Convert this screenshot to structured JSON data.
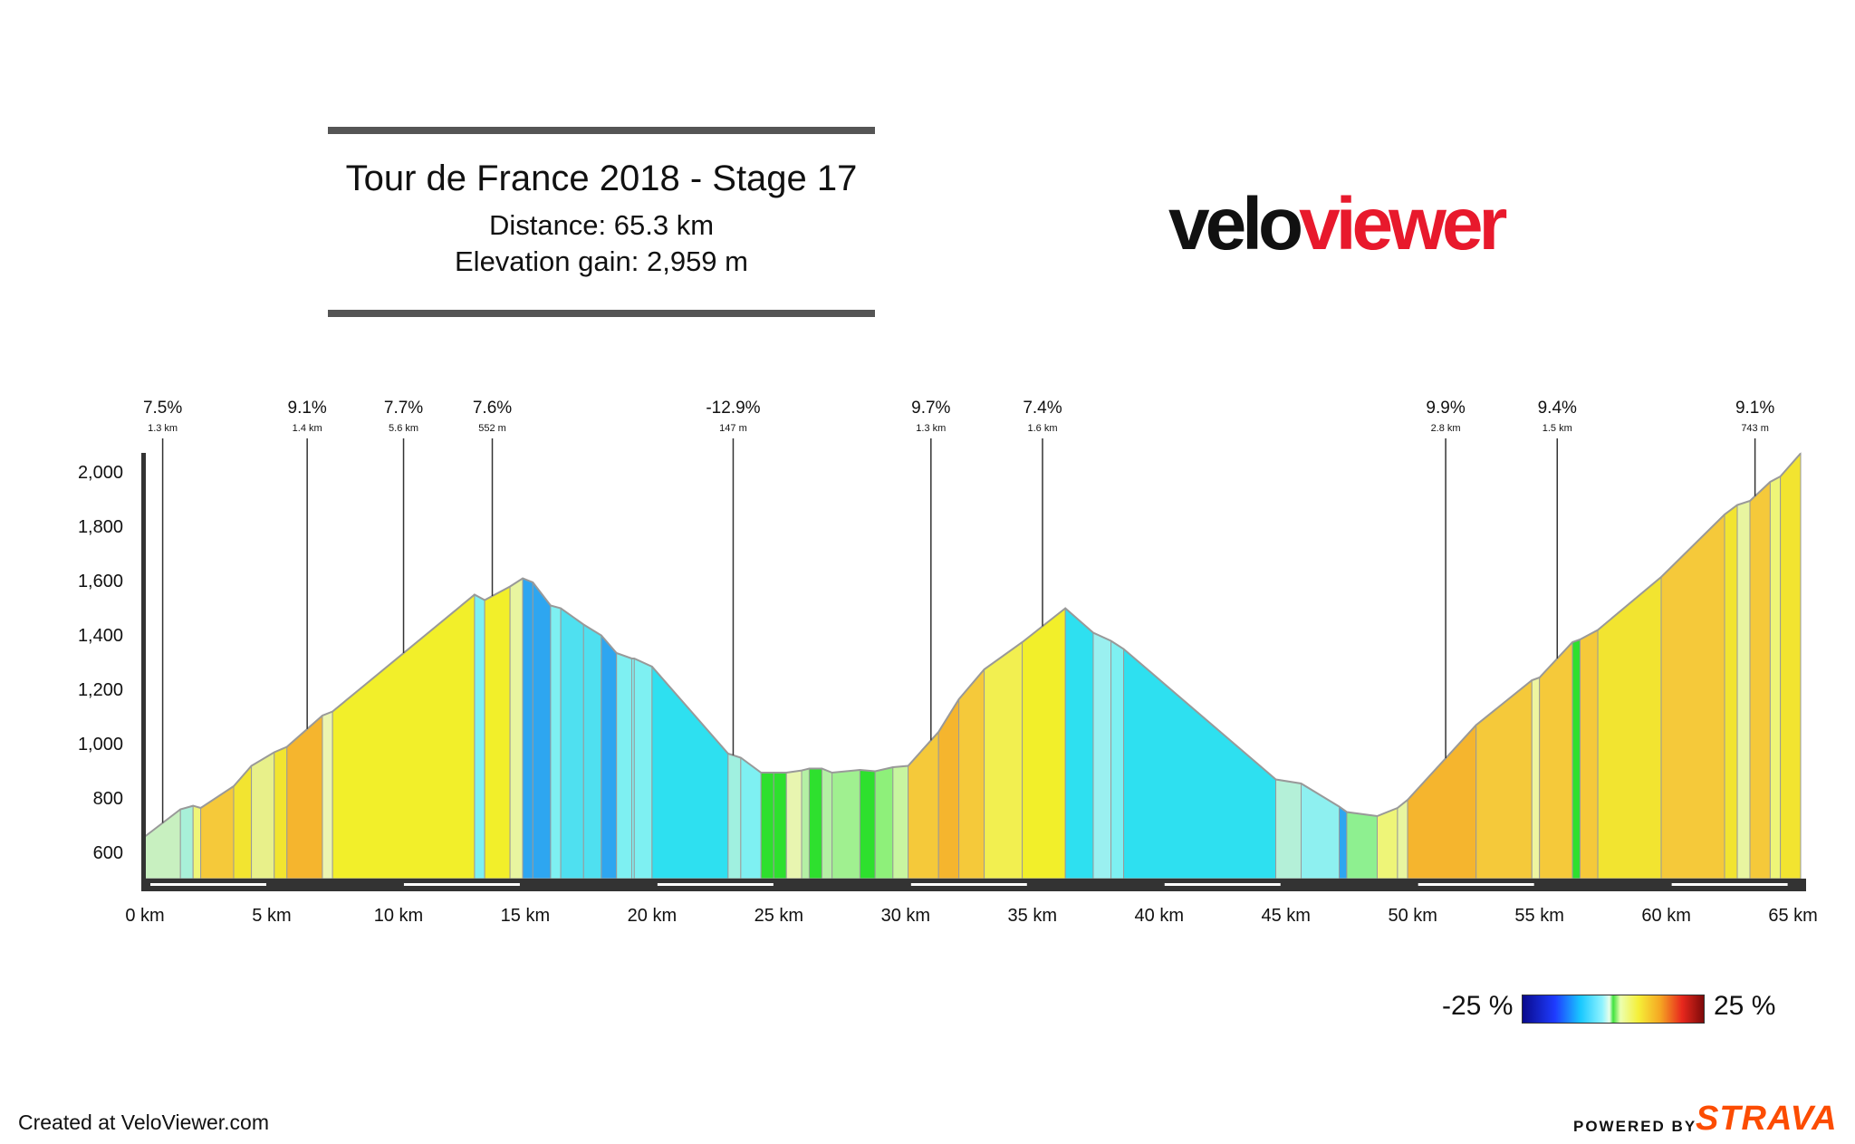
{
  "title": "Tour de France 2018 - Stage 17",
  "distance_text": "Distance: 65.3 km",
  "elevation_text": "Elevation gain: 2,959 m",
  "logo": {
    "part1": "velo",
    "part2": "viewer",
    "color1": "#111111",
    "color2": "#e8192c"
  },
  "footer": {
    "created": "Created at VeloViewer.com",
    "powered": "POWERED BY",
    "strava": "STRAVA"
  },
  "legend": {
    "min": "-25 %",
    "max": "25 %"
  },
  "chart_data": {
    "type": "area",
    "x_unit": "km",
    "y_unit": "m",
    "xlim": [
      0,
      65.3
    ],
    "ylim": [
      500,
      2070
    ],
    "x_ticks": [
      0,
      5,
      10,
      15,
      20,
      25,
      30,
      35,
      40,
      45,
      50,
      55,
      60,
      65
    ],
    "x_tick_labels": [
      "0 km",
      "5 km",
      "10 km",
      "15 km",
      "20 km",
      "25 km",
      "30 km",
      "35 km",
      "40 km",
      "45 km",
      "50 km",
      "55 km",
      "60 km",
      "65 km"
    ],
    "y_ticks": [
      600,
      800,
      1000,
      1200,
      1400,
      1600,
      1800,
      2000
    ],
    "y_tick_labels": [
      "600",
      "800",
      "1,000",
      "1,200",
      "1,400",
      "1,600",
      "1,800",
      "2,000"
    ],
    "profile": [
      [
        0,
        655,
        "#f2e430"
      ],
      [
        1.4,
        755,
        "#c8f0c0"
      ],
      [
        1.9,
        768,
        "#a8f0d8"
      ],
      [
        2.2,
        760,
        "#eef578"
      ],
      [
        3.5,
        840,
        "#f5c93a"
      ],
      [
        4.2,
        915,
        "#f2e430"
      ],
      [
        5.1,
        965,
        "#e8f08a"
      ],
      [
        5.6,
        985,
        "#f2e430"
      ],
      [
        7.0,
        1100,
        "#f5b52e"
      ],
      [
        7.4,
        1115,
        "#ecf5b0"
      ],
      [
        13.0,
        1545,
        "#f2ef2a"
      ],
      [
        13.4,
        1525,
        "#7ef0f2"
      ],
      [
        14.4,
        1575,
        "#f2ef2a"
      ],
      [
        14.9,
        1605,
        "#e8f5a0"
      ],
      [
        15.3,
        1590,
        "#2ea6f0"
      ],
      [
        16.0,
        1505,
        "#2ea6f0"
      ],
      [
        16.4,
        1495,
        "#7ef0f2"
      ],
      [
        17.3,
        1435,
        "#4fe0f0"
      ],
      [
        18.0,
        1395,
        "#4fe0f0"
      ],
      [
        18.6,
        1330,
        "#2ea6f0"
      ],
      [
        19.2,
        1310,
        "#7ef0f2"
      ],
      [
        19.2,
        1310,
        "#7ef0f2"
      ],
      [
        19.2,
        1310,
        "#7ef0f2"
      ],
      [
        19.2,
        1310,
        "#7ef0f2"
      ],
      [
        19.3,
        1310,
        "#7ef0f2"
      ],
      [
        20.0,
        1280,
        "#7ef0f2"
      ],
      [
        23.0,
        960,
        "#2ee0f0"
      ],
      [
        23.5,
        945,
        "#a0f0e0"
      ],
      [
        24.3,
        890,
        "#7ef0f2"
      ],
      [
        24.8,
        890,
        "#2ee02e"
      ],
      [
        25.3,
        890,
        "#2ee02e"
      ],
      [
        25.9,
        898,
        "#e8f5b0"
      ],
      [
        26.2,
        905,
        "#b4f0a4"
      ],
      [
        26.7,
        905,
        "#2ee02e"
      ],
      [
        27.1,
        890,
        "#b4f0a4"
      ],
      [
        28.2,
        900,
        "#a0f090"
      ],
      [
        28.8,
        895,
        "#2ee02e"
      ],
      [
        29.5,
        910,
        "#8ef07a"
      ],
      [
        30.1,
        915,
        "#c8f5a0"
      ],
      [
        31.3,
        1040,
        "#f5c93a"
      ],
      [
        32.1,
        1160,
        "#f5b52e"
      ],
      [
        33.1,
        1270,
        "#f5c93a"
      ],
      [
        34.6,
        1370,
        "#f2ef50"
      ],
      [
        36.3,
        1495,
        "#f2ef2a"
      ],
      [
        37.4,
        1405,
        "#2ee0f0"
      ],
      [
        38.1,
        1375,
        "#9af0f0"
      ],
      [
        38.6,
        1345,
        "#7ef0f2"
      ],
      [
        44.6,
        865,
        "#2ee0f0"
      ],
      [
        45.6,
        850,
        "#b4f0d8"
      ],
      [
        47.1,
        765,
        "#8ef0f0"
      ],
      [
        47.4,
        745,
        "#2ea6f0"
      ],
      [
        48.6,
        730,
        "#8ef090"
      ],
      [
        49.4,
        760,
        "#eef578"
      ],
      [
        49.8,
        790,
        "#e8f5a0"
      ],
      [
        52.5,
        1065,
        "#f5b52e"
      ],
      [
        54.7,
        1230,
        "#f5c93a"
      ],
      [
        55.0,
        1240,
        "#eef5a0"
      ],
      [
        56.3,
        1370,
        "#f5c93a"
      ],
      [
        56.6,
        1380,
        "#2ee02e"
      ],
      [
        57.3,
        1415,
        "#f5c93a"
      ],
      [
        59.8,
        1610,
        "#f2e430"
      ],
      [
        62.3,
        1840,
        "#f5c93a"
      ],
      [
        62.8,
        1875,
        "#f2e430"
      ],
      [
        63.3,
        1890,
        "#e8f5a0"
      ],
      [
        64.1,
        1960,
        "#f5c93a"
      ],
      [
        64.5,
        1980,
        "#eef578"
      ],
      [
        65.3,
        2065,
        "#f2e430"
      ]
    ],
    "climb_markers": [
      {
        "km": 0.7,
        "gradient": "7.5%",
        "length": "1.3 km"
      },
      {
        "km": 6.4,
        "gradient": "9.1%",
        "length": "1.4 km"
      },
      {
        "km": 10.2,
        "gradient": "7.7%",
        "length": "5.6 km"
      },
      {
        "km": 13.7,
        "gradient": "7.6%",
        "length": "552 m"
      },
      {
        "km": 23.2,
        "gradient": "-12.9%",
        "length": "147 m"
      },
      {
        "km": 31.0,
        "gradient": "9.7%",
        "length": "1.3 km"
      },
      {
        "km": 35.4,
        "gradient": "7.4%",
        "length": "1.6 km"
      },
      {
        "km": 51.3,
        "gradient": "9.9%",
        "length": "2.8 km"
      },
      {
        "km": 55.7,
        "gradient": "9.4%",
        "length": "1.5 km"
      },
      {
        "km": 63.5,
        "gradient": "9.1%",
        "length": "743 m"
      }
    ]
  }
}
